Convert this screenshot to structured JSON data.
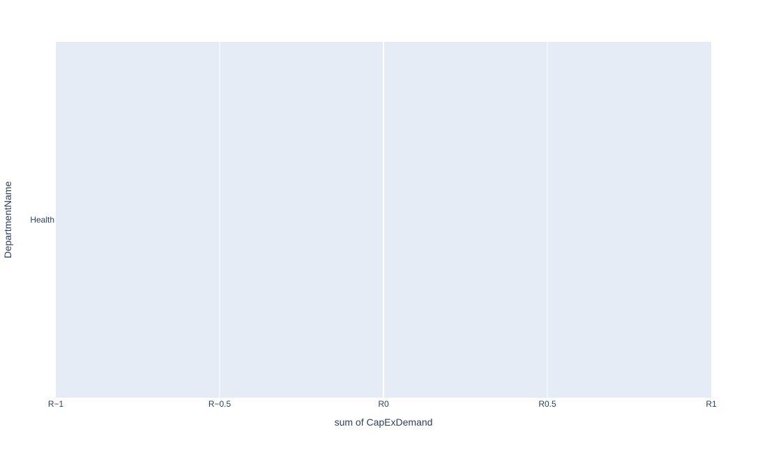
{
  "chart_data": {
    "type": "bar",
    "orientation": "horizontal",
    "categories": [
      "Health"
    ],
    "series": [
      {
        "values": [
          0
        ]
      }
    ],
    "title": "",
    "xlabel": "sum of CapExDemand",
    "ylabel": "DepartmentName",
    "xlim": [
      -1,
      1
    ],
    "xticks": [
      -1,
      -0.5,
      0,
      0.5,
      1
    ],
    "xtick_labels": [
      "R−1",
      "R−0.5",
      "R0",
      "R0.5",
      "R1"
    ],
    "grid": true,
    "legend": "none",
    "colors": {
      "plot_background": "#e5ecf6",
      "grid": "#ffffff",
      "text": "#2a3f5f",
      "bar": "#636efa"
    }
  }
}
